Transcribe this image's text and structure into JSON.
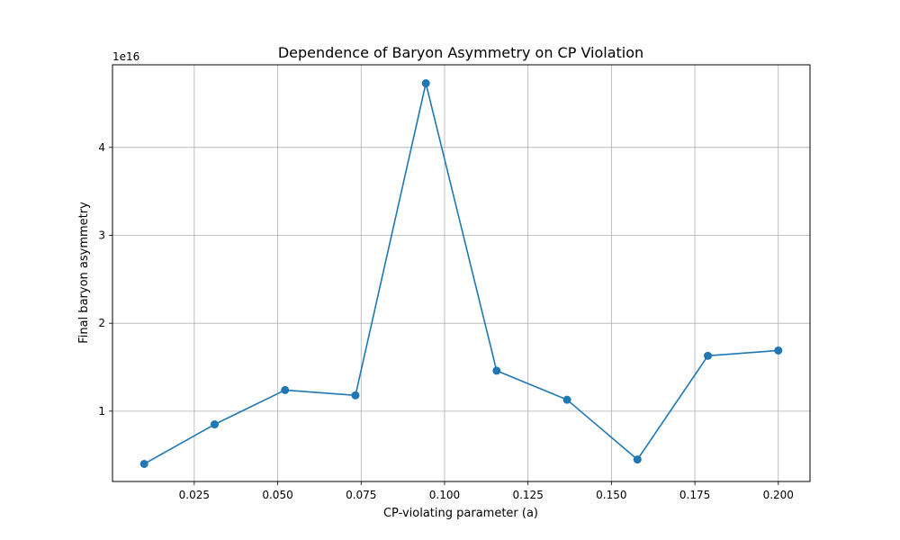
{
  "chart_data": {
    "type": "line",
    "title": "Dependence of Baryon Asymmetry on CP Violation",
    "xlabel": "CP-violating parameter (a)",
    "ylabel": "Final baryon asymmetry",
    "y_offset_label": "1e16",
    "x_ticks": [
      "0.025",
      "0.050",
      "0.075",
      "0.100",
      "0.125",
      "0.150",
      "0.175",
      "0.200"
    ],
    "x_tick_values": [
      0.025,
      0.05,
      0.075,
      0.1,
      0.125,
      0.15,
      0.175,
      0.2
    ],
    "y_ticks": [
      "1",
      "2",
      "3",
      "4"
    ],
    "y_tick_values": [
      1,
      2,
      3,
      4
    ],
    "xlim": [
      0.0005,
      0.2095
    ],
    "ylim": [
      0.2,
      4.94
    ],
    "y_unit_multiplier": 1e+16,
    "grid": true,
    "marker": "circle",
    "colors": {
      "line": "#1f77b4",
      "grid": "#b0b0b0",
      "axes": "#000000"
    },
    "series": [
      {
        "x": [
          0.01,
          0.0311,
          0.0522,
          0.0733,
          0.0944,
          0.1156,
          0.1367,
          0.1578,
          0.1789,
          0.2
        ],
        "values": [
          0.4,
          0.85,
          1.24,
          1.18,
          4.73,
          1.46,
          1.13,
          0.45,
          1.63,
          1.69
        ]
      }
    ]
  }
}
